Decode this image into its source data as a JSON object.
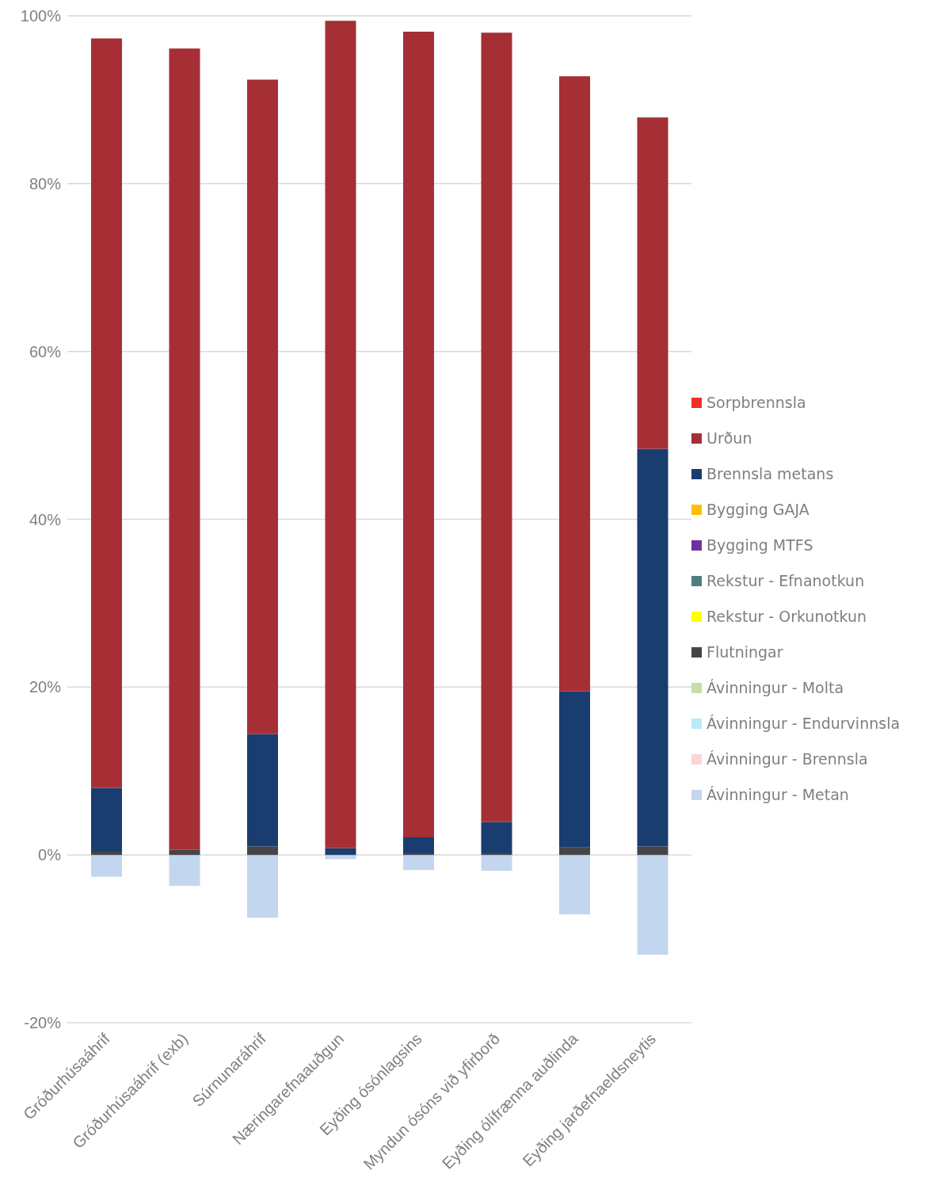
{
  "chart_data": {
    "type": "bar",
    "stacked": true,
    "categories": [
      "Gróðurhúsaáhrif",
      "Gróðurhúsaáhrif (exb)",
      "Súrnunaráhrif",
      "Næringarefnaauðgun",
      "Eyðing ósónlagsins",
      "Myndun ósóns við yfirborð",
      "Eyðing ólífrænna auðlinda",
      "Eyðing jarðefnaeldsneytis"
    ],
    "series": [
      {
        "name": "Ávinningur - Metan",
        "color": "#c3d6f0",
        "values": [
          -2.6,
          -3.7,
          -7.5,
          -0.5,
          -1.8,
          -1.9,
          -7.1,
          -11.9
        ]
      },
      {
        "name": "Ávinningur - Brennsla",
        "color": "#fbd4d4",
        "values": [
          0,
          0,
          0,
          0,
          0,
          0,
          0,
          0
        ]
      },
      {
        "name": "Ávinningur - Endurvinnsla",
        "color": "#b7ebfa",
        "values": [
          0,
          0,
          0,
          0,
          0,
          0,
          0,
          0
        ]
      },
      {
        "name": "Ávinningur - Molta",
        "color": "#c5e0a5",
        "values": [
          0,
          0,
          0,
          0,
          0,
          0,
          0,
          0
        ]
      },
      {
        "name": "Flutningar",
        "color": "#454548",
        "values": [
          0.4,
          0.6,
          1.0,
          0,
          0.2,
          0.2,
          0.9,
          1.0
        ]
      },
      {
        "name": "Rekstur - Orkunotkun",
        "color": "#ffff00",
        "values": [
          0,
          0,
          0,
          0,
          0,
          0,
          0,
          0
        ]
      },
      {
        "name": "Rekstur - Efnanotkun",
        "color": "#4e7f80",
        "values": [
          0,
          0,
          0,
          0,
          0,
          0,
          0,
          0
        ]
      },
      {
        "name": "Bygging MTFS",
        "color": "#7030a0",
        "values": [
          0,
          0,
          0,
          0,
          0,
          0,
          0,
          0
        ]
      },
      {
        "name": "Bygging GAJA",
        "color": "#ffc000",
        "values": [
          0,
          0,
          0,
          0,
          0,
          0,
          0,
          0
        ]
      },
      {
        "name": "Brennsla metans",
        "color": "#1a3d6f",
        "values": [
          7.6,
          0,
          13.4,
          0.8,
          1.9,
          3.7,
          18.6,
          47.4
        ]
      },
      {
        "name": "Urðun",
        "color": "#a52f35",
        "values": [
          89.3,
          95.5,
          78.0,
          98.6,
          96.0,
          94.1,
          73.3,
          39.5
        ]
      },
      {
        "name": "Sorpbrennsla",
        "color": "#ee3124",
        "values": [
          0,
          0,
          0,
          0,
          0,
          0,
          0,
          0
        ]
      }
    ],
    "ylim": [
      -20,
      100
    ],
    "yticks": [
      {
        "value": -20,
        "label": "-20%"
      },
      {
        "value": 0,
        "label": "0%"
      },
      {
        "value": 20,
        "label": "20%"
      },
      {
        "value": 40,
        "label": "40%"
      },
      {
        "value": 60,
        "label": "60%"
      },
      {
        "value": 80,
        "label": "80%"
      },
      {
        "value": 100,
        "label": "100%"
      }
    ],
    "grid": "y",
    "legend": "right"
  }
}
